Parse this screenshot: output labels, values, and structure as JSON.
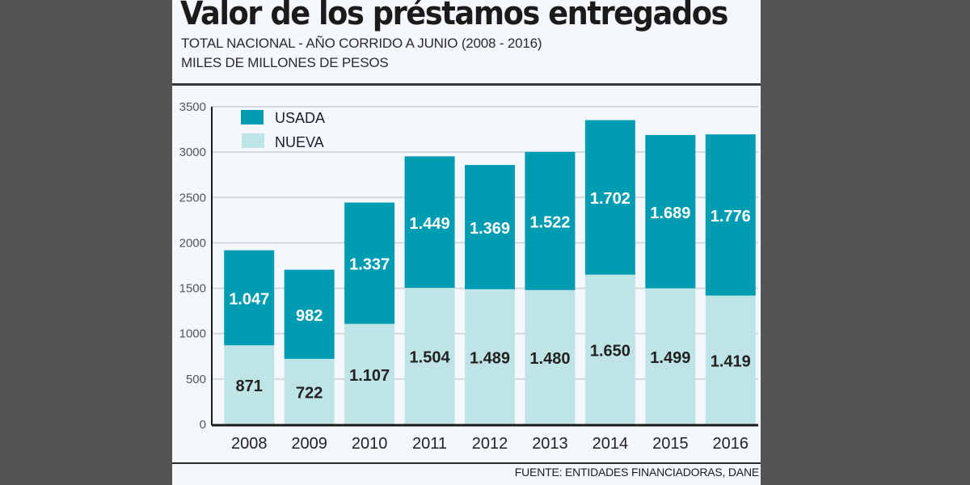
{
  "header": {
    "title": "Valor de los préstamos entregados",
    "subtitle_line1": "TOTAL NACIONAL - AÑO CORRIDO A JUNIO (2008 - 2016)",
    "subtitle_line2": "MILES DE MILLONES DE PESOS"
  },
  "footer": {
    "source": "FUENTE: ENTIDADES FINANCIADORAS, DANE"
  },
  "colors": {
    "usada": "#009cb2",
    "nueva": "#bfe4e6"
  },
  "chart_data": {
    "type": "bar",
    "stacked": true,
    "title": "Valor de los préstamos entregados",
    "subtitle": "TOTAL NACIONAL - AÑO CORRIDO A JUNIO (2008 - 2016) / MILES DE MILLONES DE PESOS",
    "xlabel": "",
    "ylabel": "",
    "categories": [
      "2008",
      "2009",
      "2010",
      "2011",
      "2012",
      "2013",
      "2014",
      "2015",
      "2016"
    ],
    "series": [
      {
        "name": "NUEVA",
        "color": "#bfe4e6",
        "values": [
          871,
          722,
          1107,
          1504,
          1489,
          1480,
          1650,
          1499,
          1419
        ],
        "labels": [
          "871",
          "722",
          "1.107",
          "1.504",
          "1.489",
          "1.480",
          "1.650",
          "1.499",
          "1.419"
        ]
      },
      {
        "name": "USADA",
        "color": "#009cb2",
        "values": [
          1047,
          982,
          1337,
          1449,
          1369,
          1522,
          1702,
          1689,
          1776
        ],
        "labels": [
          "1.047",
          "982",
          "1.337",
          "1.449",
          "1.369",
          "1.522",
          "1.702",
          "1.689",
          "1.776"
        ]
      }
    ],
    "ylim": [
      0,
      3500
    ],
    "yticks": [
      0,
      500,
      1000,
      1500,
      2000,
      2500,
      3000,
      3500
    ],
    "ytick_labels": [
      "0",
      "500",
      "1000",
      "1500",
      "2000",
      "2500",
      "3000",
      "3500"
    ],
    "grid": true,
    "legend": {
      "placement": "top-left",
      "entries": [
        "USADA",
        "NUEVA"
      ]
    }
  }
}
